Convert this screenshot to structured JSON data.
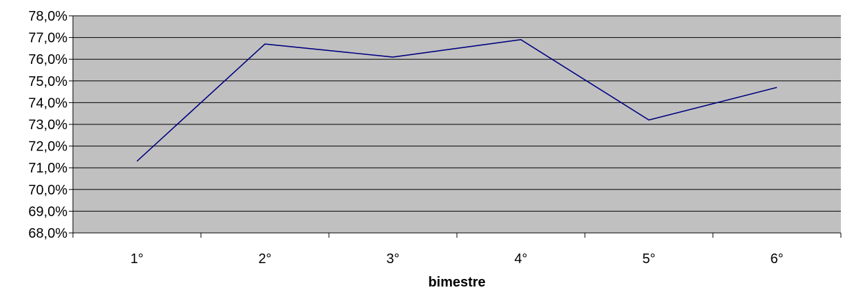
{
  "chart_data": {
    "type": "line",
    "categories": [
      "1°",
      "2°",
      "3°",
      "4°",
      "5°",
      "6°"
    ],
    "series": [
      {
        "values": [
          71.3,
          76.7,
          76.1,
          76.9,
          73.2,
          74.7
        ]
      }
    ],
    "ylim": [
      68,
      78
    ],
    "yticks": [
      68,
      69,
      70,
      71,
      72,
      73,
      74,
      75,
      76,
      77,
      78
    ],
    "ytick_labels": [
      "68,0%",
      "69,0%",
      "70,0%",
      "71,0%",
      "72,0%",
      "73,0%",
      "74,0%",
      "75,0%",
      "76,0%",
      "77,0%",
      "78,0%"
    ],
    "xlabel": "bimestre",
    "ylabel": "",
    "grid": true,
    "legend": "none",
    "plot_background": "#c0c0c0",
    "line_color": "#000080",
    "gridline_color": "#000000"
  }
}
